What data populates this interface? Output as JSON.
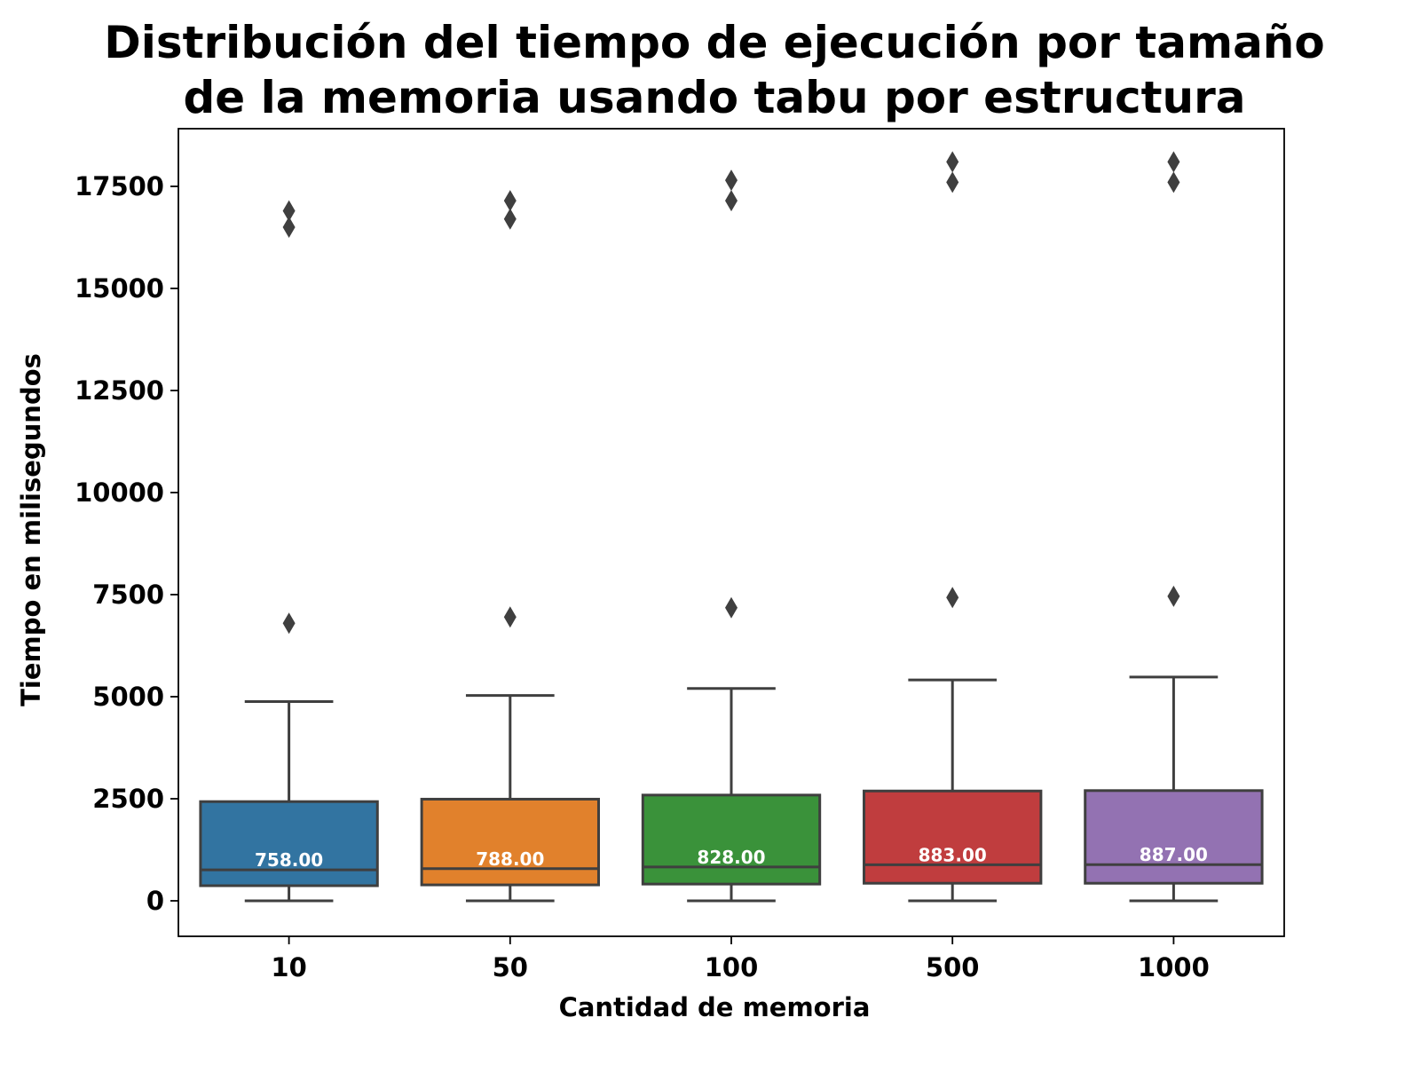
{
  "chart_data": {
    "type": "boxplot",
    "title_lines": [
      "Distribución del tiempo de ejecución por tamaño",
      "de la memoria usando tabu por estructura"
    ],
    "xlabel": "Cantidad de memoria",
    "ylabel": "Tiempo en milisegundos",
    "ylim": [
      -850,
      19000
    ],
    "yticks": [
      0,
      2500,
      5000,
      7500,
      10000,
      12500,
      15000,
      17500
    ],
    "categories": [
      "10",
      "50",
      "100",
      "500",
      "1000"
    ],
    "boxes": [
      {
        "category": "10",
        "color": "#3274a1",
        "whisker_low": 0,
        "q1": 370,
        "median": 758,
        "q3": 2430,
        "whisker_high": 4880,
        "outliers": [
          6800,
          16500,
          16900
        ],
        "median_label": "758.00"
      },
      {
        "category": "50",
        "color": "#e1812c",
        "whisker_low": 0,
        "q1": 390,
        "median": 788,
        "q3": 2490,
        "whisker_high": 5030,
        "outliers": [
          6950,
          16700,
          17150
        ],
        "median_label": "788.00"
      },
      {
        "category": "100",
        "color": "#3a923a",
        "whisker_low": 0,
        "q1": 410,
        "median": 828,
        "q3": 2590,
        "whisker_high": 5200,
        "outliers": [
          7180,
          17150,
          17650
        ],
        "median_label": "828.00"
      },
      {
        "category": "500",
        "color": "#c03d3e",
        "whisker_low": 0,
        "q1": 430,
        "median": 883,
        "q3": 2690,
        "whisker_high": 5410,
        "outliers": [
          7430,
          17600,
          18100
        ],
        "median_label": "883.00"
      },
      {
        "category": "1000",
        "color": "#9372b2",
        "whisker_low": 0,
        "q1": 430,
        "median": 887,
        "q3": 2700,
        "whisker_high": 5480,
        "outliers": [
          7460,
          17600,
          18100
        ],
        "median_label": "887.00"
      }
    ],
    "grid": false,
    "legend": "none"
  }
}
